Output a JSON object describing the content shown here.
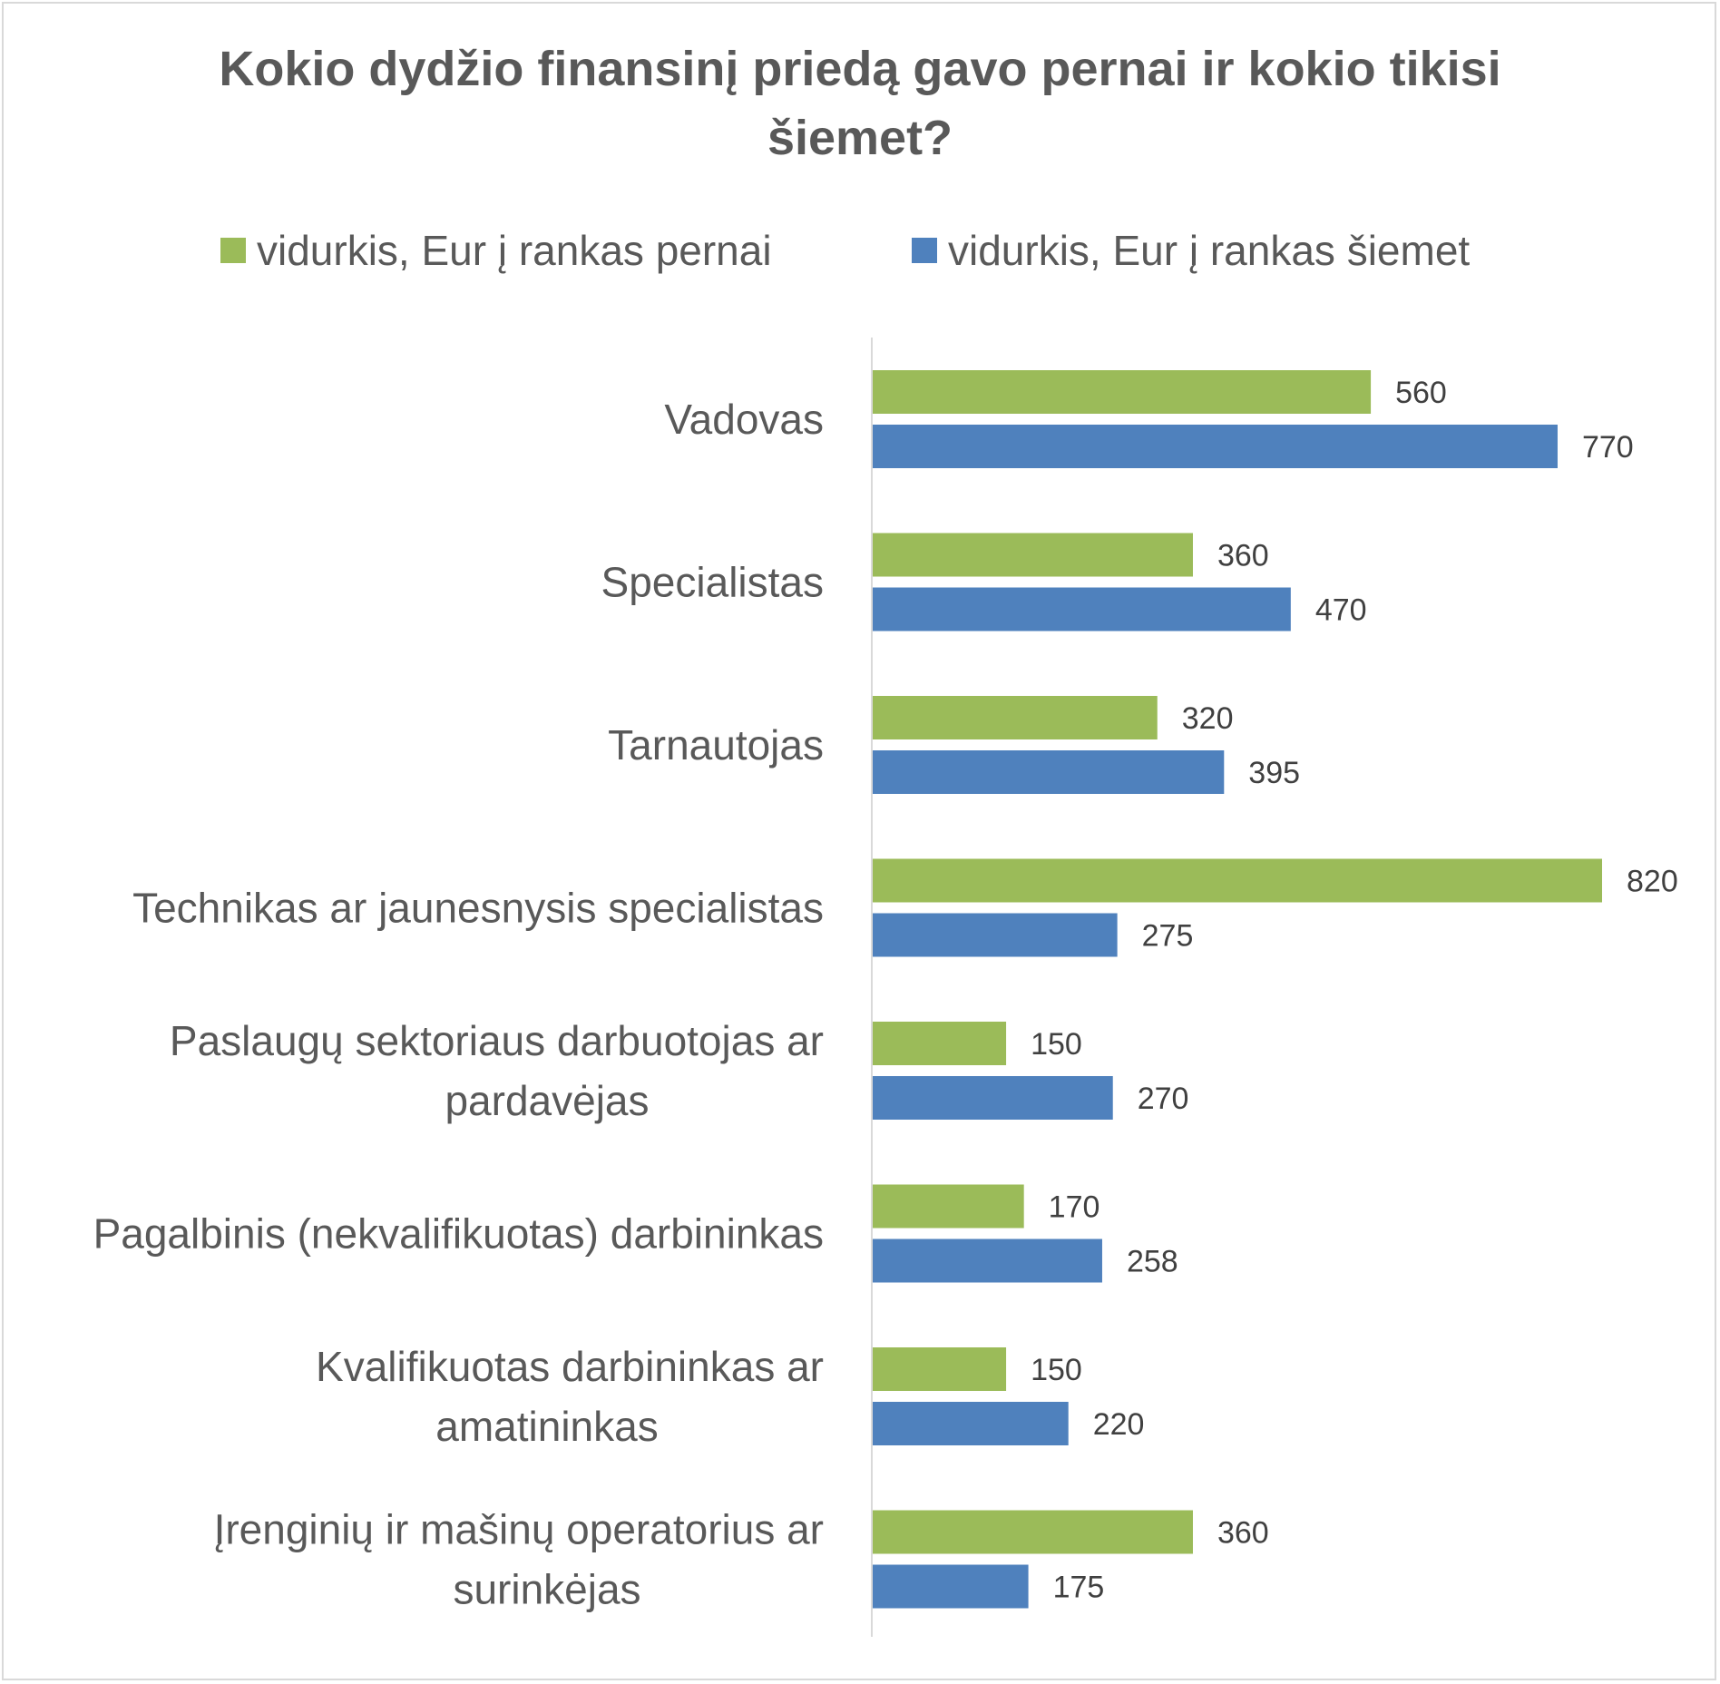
{
  "chart_data": {
    "type": "bar",
    "orientation": "horizontal",
    "title": "Kokio dydžio finansinį priedą gavo pernai ir kokio tikisi šiemet?",
    "title_lines": [
      "Kokio dydžio finansinį priedą gavo pernai ir kokio tikisi",
      "šiemet?"
    ],
    "categories": [
      [
        "Vadovas"
      ],
      [
        "Specialistas"
      ],
      [
        "Tarnautojas"
      ],
      [
        "Technikas ar jaunesnysis specialistas"
      ],
      [
        "Paslaugų sektoriaus darbuotojas ar",
        "pardavėjas"
      ],
      [
        "Pagalbinis (nekvalifikuotas) darbininkas"
      ],
      [
        "Kvalifikuotas darbininkas ar",
        "amatininkas"
      ],
      [
        "Įrenginių ir mašinų operatorius ar",
        "surinkėjas"
      ]
    ],
    "series": [
      {
        "name": "vidurkis, Eur į rankas pernai",
        "color": "#9bbb59",
        "values": [
          560,
          360,
          320,
          820,
          150,
          170,
          150,
          360
        ]
      },
      {
        "name": "vidurkis, Eur į rankas šiemet",
        "color": "#4f81bd",
        "values": [
          770,
          470,
          395,
          275,
          270,
          258,
          220,
          175
        ]
      }
    ],
    "xlim": [
      0,
      820
    ],
    "xlabel": "",
    "ylabel": "",
    "grid": false,
    "legend_position": "top",
    "data_labels": true
  }
}
